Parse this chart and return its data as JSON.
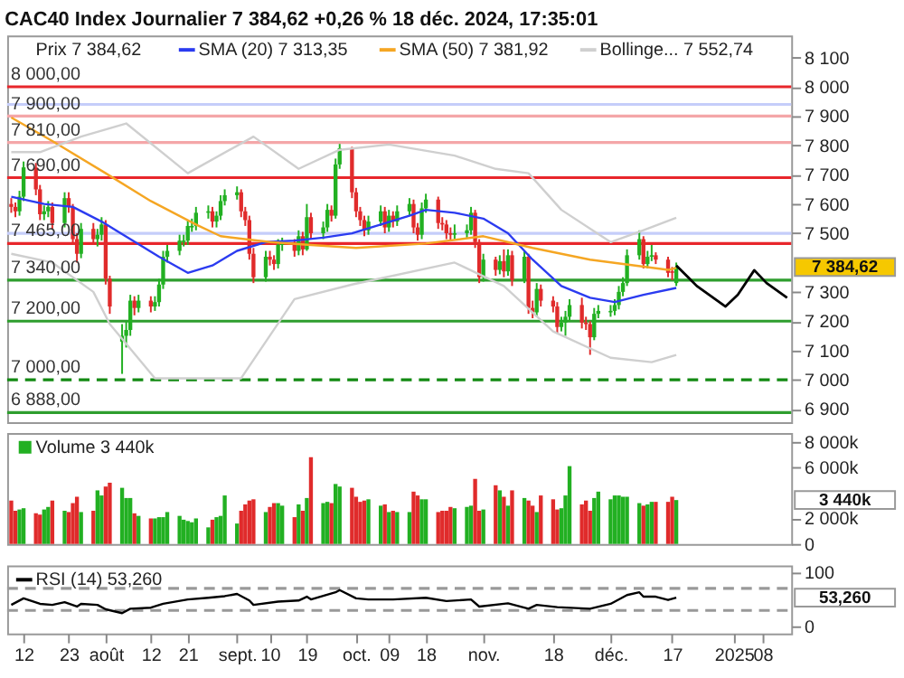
{
  "chart_data": [
    {
      "type": "candlestick",
      "title": "CAC40 Index Journalier 7 384,62 +0,26 % 18 déc. 2024, 17:35:01",
      "legend": "top",
      "tick_labels": "y",
      "xlim": [
        "2024-07-08",
        "2025-01-15"
      ],
      "ylim": [
        6855,
        8175
      ],
      "yticks": [
        {
          "value": 8100,
          "label": "8 100"
        },
        {
          "value": 8000,
          "label": "8 000"
        },
        {
          "value": 7900,
          "label": "7 900"
        },
        {
          "value": 7800,
          "label": "7 800"
        },
        {
          "value": 7700,
          "label": "7 700"
        },
        {
          "value": 7600,
          "label": "7 600"
        },
        {
          "value": 7500,
          "label": "7 500"
        },
        {
          "value": 7300,
          "label": "7 300"
        },
        {
          "value": 7200,
          "label": "7 200"
        },
        {
          "value": 7100,
          "label": "7 100"
        },
        {
          "value": 7000,
          "label": "7 000"
        },
        {
          "value": 6900,
          "label": "6 900"
        }
      ],
      "x": [
        "2024-07-09",
        "2024-07-10",
        "2024-07-11",
        "2024-07-12",
        "2024-07-15",
        "2024-07-16",
        "2024-07-17",
        "2024-07-18",
        "2024-07-19",
        "2024-07-22",
        "2024-07-23",
        "2024-07-24",
        "2024-07-25",
        "2024-07-26",
        "2024-07-29",
        "2024-07-30",
        "2024-07-31",
        "2024-08-01",
        "2024-08-02",
        "2024-08-05",
        "2024-08-06",
        "2024-08-07",
        "2024-08-08",
        "2024-08-09",
        "2024-08-12",
        "2024-08-13",
        "2024-08-14",
        "2024-08-15",
        "2024-08-16",
        "2024-08-19",
        "2024-08-20",
        "2024-08-21",
        "2024-08-22",
        "2024-08-23",
        "2024-08-26",
        "2024-08-27",
        "2024-08-28",
        "2024-08-29",
        "2024-08-30",
        "2024-09-02",
        "2024-09-03",
        "2024-09-04",
        "2024-09-05",
        "2024-09-06",
        "2024-09-09",
        "2024-09-10",
        "2024-09-11",
        "2024-09-12",
        "2024-09-13",
        "2024-09-16",
        "2024-09-17",
        "2024-09-18",
        "2024-09-19",
        "2024-09-20",
        "2024-09-23",
        "2024-09-24",
        "2024-09-25",
        "2024-09-26",
        "2024-09-27",
        "2024-09-30",
        "2024-10-01",
        "2024-10-02",
        "2024-10-03",
        "2024-10-04",
        "2024-10-07",
        "2024-10-08",
        "2024-10-09",
        "2024-10-10",
        "2024-10-11",
        "2024-10-14",
        "2024-10-15",
        "2024-10-16",
        "2024-10-17",
        "2024-10-18",
        "2024-10-21",
        "2024-10-22",
        "2024-10-23",
        "2024-10-24",
        "2024-10-25",
        "2024-10-28",
        "2024-10-29",
        "2024-10-30",
        "2024-10-31",
        "2024-11-01",
        "2024-11-04",
        "2024-11-05",
        "2024-11-06",
        "2024-11-07",
        "2024-11-08",
        "2024-11-11",
        "2024-11-12",
        "2024-11-13",
        "2024-11-14",
        "2024-11-15",
        "2024-11-18",
        "2024-11-19",
        "2024-11-20",
        "2024-11-21",
        "2024-11-22",
        "2024-11-25",
        "2024-11-26",
        "2024-11-27",
        "2024-11-28",
        "2024-11-29",
        "2024-12-02",
        "2024-12-03",
        "2024-12-04",
        "2024-12-05",
        "2024-12-06",
        "2024-12-09",
        "2024-12-10",
        "2024-12-11",
        "2024-12-12",
        "2024-12-13",
        "2024-12-16",
        "2024-12-17",
        "2024-12-18"
      ],
      "ohlc": [
        [
          7600,
          7620,
          7570,
          7590
        ],
        [
          7590,
          7605,
          7555,
          7575
        ],
        [
          7575,
          7645,
          7560,
          7625
        ],
        [
          7625,
          7745,
          7610,
          7725
        ],
        [
          7725,
          7740,
          7630,
          7650
        ],
        [
          7650,
          7665,
          7545,
          7565
        ],
        [
          7565,
          7595,
          7545,
          7575
        ],
        [
          7575,
          7610,
          7555,
          7590
        ],
        [
          7590,
          7605,
          7515,
          7535
        ],
        [
          7535,
          7640,
          7520,
          7620
        ],
        [
          7620,
          7640,
          7570,
          7590
        ],
        [
          7590,
          7600,
          7460,
          7480
        ],
        [
          7480,
          7500,
          7400,
          7430
        ],
        [
          7430,
          7535,
          7415,
          7515
        ],
        [
          7515,
          7535,
          7460,
          7480
        ],
        [
          7480,
          7515,
          7455,
          7495
        ],
        [
          7495,
          7555,
          7475,
          7530
        ],
        [
          7530,
          7545,
          7325,
          7345
        ],
        [
          7345,
          7355,
          7225,
          7250
        ],
        [
          7130,
          7190,
          7020,
          7150
        ],
        [
          7150,
          7200,
          7110,
          7170
        ],
        [
          7170,
          7290,
          7150,
          7270
        ],
        [
          7270,
          7285,
          7220,
          7245
        ],
        [
          7245,
          7290,
          7230,
          7270
        ],
        [
          7270,
          7285,
          7230,
          7250
        ],
        [
          7250,
          7285,
          7235,
          7265
        ],
        [
          7265,
          7345,
          7250,
          7325
        ],
        [
          7325,
          7440,
          7310,
          7420
        ],
        [
          7420,
          7460,
          7400,
          7440
        ],
        [
          7440,
          7495,
          7425,
          7475
        ],
        [
          7470,
          7495,
          7455,
          7475
        ],
        [
          7475,
          7545,
          7460,
          7525
        ],
        [
          7520,
          7550,
          7505,
          7525
        ],
        [
          7525,
          7590,
          7510,
          7570
        ],
        [
          7570,
          7595,
          7550,
          7575
        ],
        [
          7575,
          7590,
          7520,
          7540
        ],
        [
          7540,
          7575,
          7520,
          7560
        ],
        [
          7560,
          7630,
          7545,
          7610
        ],
        [
          7610,
          7650,
          7595,
          7630
        ],
        [
          7630,
          7660,
          7615,
          7640
        ],
        [
          7640,
          7650,
          7555,
          7575
        ],
        [
          7575,
          7590,
          7525,
          7545
        ],
        [
          7545,
          7560,
          7410,
          7430
        ],
        [
          7430,
          7450,
          7330,
          7350
        ],
        [
          7350,
          7440,
          7335,
          7420
        ],
        [
          7420,
          7440,
          7390,
          7410
        ],
        [
          7410,
          7425,
          7375,
          7395
        ],
        [
          7395,
          7480,
          7380,
          7460
        ],
        [
          7460,
          7485,
          7440,
          7465
        ],
        [
          7465,
          7480,
          7420,
          7440
        ],
        [
          7440,
          7510,
          7425,
          7490
        ],
        [
          7490,
          7505,
          7425,
          7445
        ],
        [
          7445,
          7600,
          7440,
          7555
        ],
        [
          7555,
          7570,
          7480,
          7500
        ],
        [
          7500,
          7540,
          7480,
          7520
        ],
        [
          7520,
          7600,
          7505,
          7580
        ],
        [
          7580,
          7595,
          7540,
          7560
        ],
        [
          7560,
          7755,
          7550,
          7735
        ],
        [
          7735,
          7805,
          7720,
          7790
        ],
        [
          7790,
          7795,
          7620,
          7640
        ],
        [
          7640,
          7655,
          7555,
          7575
        ],
        [
          7575,
          7590,
          7525,
          7545
        ],
        [
          7545,
          7560,
          7490,
          7510
        ],
        [
          7510,
          7560,
          7495,
          7540
        ],
        [
          7540,
          7595,
          7525,
          7575
        ],
        [
          7575,
          7590,
          7500,
          7520
        ],
        [
          7520,
          7580,
          7505,
          7560
        ],
        [
          7560,
          7575,
          7520,
          7540
        ],
        [
          7540,
          7595,
          7525,
          7575
        ],
        [
          7575,
          7620,
          7560,
          7600
        ],
        [
          7600,
          7615,
          7500,
          7520
        ],
        [
          7520,
          7535,
          7475,
          7495
        ],
        [
          7495,
          7605,
          7480,
          7585
        ],
        [
          7585,
          7635,
          7570,
          7615
        ],
        [
          7615,
          7625,
          7515,
          7535
        ],
        [
          7535,
          7555,
          7510,
          7530
        ],
        [
          7530,
          7545,
          7480,
          7500
        ],
        [
          7500,
          7520,
          7475,
          7495
        ],
        [
          7495,
          7530,
          7480,
          7500
        ],
        [
          7500,
          7530,
          7485,
          7510
        ],
        [
          7510,
          7590,
          7495,
          7570
        ],
        [
          7570,
          7580,
          7450,
          7470
        ],
        [
          7470,
          7480,
          7330,
          7350
        ],
        [
          7350,
          7430,
          7335,
          7410
        ],
        [
          7410,
          7420,
          7355,
          7375
        ],
        [
          7375,
          7425,
          7360,
          7405
        ],
        [
          7405,
          7445,
          7350,
          7370
        ],
        [
          7370,
          7445,
          7355,
          7425
        ],
        [
          7425,
          7440,
          7320,
          7340
        ],
        [
          7340,
          7440,
          7330,
          7420
        ],
        [
          7420,
          7430,
          7225,
          7245
        ],
        [
          7245,
          7270,
          7210,
          7230
        ],
        [
          7230,
          7330,
          7215,
          7310
        ],
        [
          7310,
          7325,
          7250,
          7270
        ],
        [
          7270,
          7285,
          7230,
          7250
        ],
        [
          7250,
          7265,
          7160,
          7180
        ],
        [
          7180,
          7215,
          7165,
          7195
        ],
        [
          7195,
          7235,
          7150,
          7215
        ],
        [
          7215,
          7275,
          7200,
          7255
        ],
        [
          7255,
          7280,
          7175,
          7195
        ],
        [
          7195,
          7215,
          7170,
          7190
        ],
        [
          7190,
          7200,
          7085,
          7145
        ],
        [
          7145,
          7245,
          7135,
          7225
        ],
        [
          7225,
          7255,
          7210,
          7235
        ],
        [
          7230,
          7255,
          7215,
          7235
        ],
        [
          7235,
          7275,
          7220,
          7255
        ],
        [
          7255,
          7320,
          7240,
          7300
        ],
        [
          7300,
          7350,
          7285,
          7330
        ],
        [
          7330,
          7445,
          7320,
          7425
        ],
        [
          7425,
          7510,
          7410,
          7480
        ],
        [
          7480,
          7490,
          7380,
          7395
        ],
        [
          7395,
          7440,
          7380,
          7420
        ],
        [
          7420,
          7460,
          7405,
          7425
        ],
        [
          7425,
          7435,
          7395,
          7410
        ],
        [
          7410,
          7420,
          7350,
          7365
        ],
        [
          7370,
          7385,
          7340,
          7365
        ],
        [
          7330,
          7400,
          7320,
          7384.62
        ]
      ],
      "colors": [
        "#e02b2b",
        "#e02b2b",
        "#22b022",
        "#22b022",
        "#e02b2b",
        "#e02b2b",
        "#22b022",
        "#22b022",
        "#e02b2b",
        "#22b022",
        "#e02b2b",
        "#e02b2b",
        "#e02b2b",
        "#22b022",
        "#e02b2b",
        "#22b022",
        "#22b022",
        "#e02b2b",
        "#e02b2b",
        "#22b022",
        "#22b022",
        "#22b022",
        "#e02b2b",
        "#22b022",
        "#e02b2b",
        "#22b022",
        "#22b022",
        "#22b022",
        "#22b022",
        "#22b022",
        "#22b022",
        "#22b022",
        "#22b022",
        "#22b022",
        "#22b022",
        "#e02b2b",
        "#22b022",
        "#22b022",
        "#22b022",
        "#22b022",
        "#e02b2b",
        "#e02b2b",
        "#e02b2b",
        "#e02b2b",
        "#22b022",
        "#e02b2b",
        "#e02b2b",
        "#22b022",
        "#22b022",
        "#e02b2b",
        "#22b022",
        "#e02b2b",
        "#22b022",
        "#e02b2b",
        "#22b022",
        "#22b022",
        "#e02b2b",
        "#22b022",
        "#22b022",
        "#e02b2b",
        "#e02b2b",
        "#e02b2b",
        "#e02b2b",
        "#22b022",
        "#22b022",
        "#e02b2b",
        "#22b022",
        "#e02b2b",
        "#22b022",
        "#22b022",
        "#e02b2b",
        "#e02b2b",
        "#22b022",
        "#22b022",
        "#e02b2b",
        "#e02b2b",
        "#e02b2b",
        "#e02b2b",
        "#22b022",
        "#22b022",
        "#22b022",
        "#e02b2b",
        "#e02b2b",
        "#22b022",
        "#e02b2b",
        "#22b022",
        "#e02b2b",
        "#22b022",
        "#e02b2b",
        "#22b022",
        "#e02b2b",
        "#e02b2b",
        "#22b022",
        "#e02b2b",
        "#e02b2b",
        "#e02b2b",
        "#22b022",
        "#22b022",
        "#22b022",
        "#e02b2b",
        "#e02b2b",
        "#e02b2b",
        "#22b022",
        "#22b022",
        "#22b022",
        "#22b022",
        "#22b022",
        "#22b022",
        "#22b022",
        "#22b022",
        "#e02b2b",
        "#22b022",
        "#22b022",
        "#e02b2b",
        "#e02b2b",
        "#e02b2b",
        "#22b022"
      ],
      "series": [
        {
          "type": "line",
          "name": "SMA (20) 7 313,35",
          "color": "#2b3bf0",
          "x": [
            "2024-07-09",
            "2024-07-17",
            "2024-07-24",
            "2024-07-31",
            "2024-08-07",
            "2024-08-14",
            "2024-08-21",
            "2024-08-27",
            "2024-09-02",
            "2024-09-09",
            "2024-09-16",
            "2024-09-23",
            "2024-09-30",
            "2024-10-07",
            "2024-10-14",
            "2024-10-18",
            "2024-10-25",
            "2024-11-01",
            "2024-11-07",
            "2024-11-13",
            "2024-11-20",
            "2024-11-27",
            "2024-12-03",
            "2024-12-10",
            "2024-12-18"
          ],
          "values": [
            7625,
            7600,
            7590,
            7540,
            7480,
            7420,
            7365,
            7390,
            7440,
            7470,
            7475,
            7485,
            7500,
            7530,
            7560,
            7580,
            7570,
            7550,
            7500,
            7410,
            7320,
            7280,
            7265,
            7290,
            7313.35
          ]
        },
        {
          "type": "line",
          "name": "SMA (50) 7 381,92",
          "color": "#f5a623",
          "x": [
            "2024-07-09",
            "2024-07-19",
            "2024-08-01",
            "2024-08-12",
            "2024-08-23",
            "2024-08-29",
            "2024-09-10",
            "2024-09-20",
            "2024-10-01",
            "2024-10-18",
            "2024-11-01",
            "2024-11-13",
            "2024-11-27",
            "2024-12-16",
            "2024-12-18"
          ],
          "values": [
            7895,
            7815,
            7705,
            7610,
            7530,
            7490,
            7470,
            7460,
            7450,
            7465,
            7490,
            7450,
            7410,
            7375,
            7381.92
          ]
        },
        {
          "type": "line",
          "name": "Bollinge... 7 552,74",
          "color": "#cfcfcf",
          "x": [
            "2024-07-09",
            "2024-07-16",
            "2024-07-26",
            "2024-08-06",
            "2024-08-21",
            "2024-09-06",
            "2024-09-17",
            "2024-09-27",
            "2024-10-09",
            "2024-10-25",
            "2024-11-04",
            "2024-11-12",
            "2024-11-20",
            "2024-12-02",
            "2024-12-09",
            "2024-12-18"
          ],
          "values": [
            7777,
            7777,
            7830,
            7875,
            7705,
            7830,
            7720,
            7785,
            7803,
            7765,
            7720,
            7705,
            7580,
            7470,
            7505,
            7552.74
          ]
        },
        {
          "type": "line",
          "color": "#cfcfcf",
          "x": [
            "2024-07-09",
            "2024-07-19",
            "2024-07-29",
            "2024-08-02",
            "2024-08-13",
            "2024-09-03",
            "2024-09-16",
            "2024-09-30",
            "2024-10-25",
            "2024-11-06",
            "2024-11-18",
            "2024-12-02",
            "2024-12-12",
            "2024-12-18"
          ],
          "values": [
            7430,
            7400,
            7300,
            7190,
            7005,
            7005,
            7275,
            7325,
            7400,
            7320,
            7165,
            7075,
            7060,
            7085
          ]
        },
        {
          "type": "line",
          "color": "#000000",
          "x": [
            "2024-12-18",
            "2024-12-23",
            "2024-12-30",
            "2025-01-02",
            "2025-01-06",
            "2025-01-09",
            "2025-01-14"
          ],
          "values": [
            7390,
            7320,
            7250,
            7290,
            7374,
            7330,
            7280
          ]
        }
      ],
      "ref_lines": [
        {
          "axis": "y",
          "value": 8000,
          "label": "8 000,00",
          "color": "#e8262b"
        },
        {
          "axis": "y",
          "value": 7940,
          "color": "#c5cdfa"
        },
        {
          "axis": "y",
          "value": 7900,
          "label": "7 900,00",
          "color": "#f4a6a8"
        },
        {
          "axis": "y",
          "value": 7810,
          "label": "7 810,00",
          "color": "#f4a6a8"
        },
        {
          "axis": "y",
          "value": 7690,
          "label": "7 690,00",
          "color": "#e8262b"
        },
        {
          "axis": "y",
          "value": 7500,
          "color": "#c5cdfa"
        },
        {
          "axis": "y",
          "value": 7465,
          "label": "7 465,00",
          "color": "#e8262b"
        },
        {
          "axis": "y",
          "value": 7340,
          "label": "7 340,00",
          "color": "#2e9e2e"
        },
        {
          "axis": "y",
          "value": 7200,
          "label": "7 200,00",
          "color": "#2e9e2e"
        },
        {
          "axis": "y",
          "value": 7000,
          "label": "7 000,00",
          "color": "#138a13",
          "line_style": "dashed"
        },
        {
          "axis": "y",
          "value": 6888,
          "label": "6 888,00",
          "color": "#2e9e2e"
        }
      ],
      "annotations": [
        "Prix 7 384,62",
        "7 384,62"
      ]
    },
    {
      "type": "bar",
      "legend": "top left",
      "tick_labels": "y",
      "xlim": [
        "2024-07-08",
        "2025-01-15"
      ],
      "ylim": [
        0,
        8700
      ],
      "yticks": [
        {
          "value": 0,
          "label": "0"
        },
        {
          "value": 2000,
          "label": "2 000k"
        },
        {
          "value": 6000,
          "label": "6 000k"
        },
        {
          "value": 8000,
          "label": "8 000k"
        }
      ],
      "x": [
        "2024-07-09",
        "2024-07-10",
        "2024-07-11",
        "2024-07-12",
        "2024-07-15",
        "2024-07-16",
        "2024-07-17",
        "2024-07-18",
        "2024-07-19",
        "2024-07-22",
        "2024-07-23",
        "2024-07-24",
        "2024-07-25",
        "2024-07-26",
        "2024-07-29",
        "2024-07-30",
        "2024-07-31",
        "2024-08-01",
        "2024-08-02",
        "2024-08-05",
        "2024-08-06",
        "2024-08-07",
        "2024-08-08",
        "2024-08-09",
        "2024-08-12",
        "2024-08-13",
        "2024-08-14",
        "2024-08-15",
        "2024-08-16",
        "2024-08-19",
        "2024-08-20",
        "2024-08-21",
        "2024-08-22",
        "2024-08-23",
        "2024-08-26",
        "2024-08-27",
        "2024-08-28",
        "2024-08-29",
        "2024-08-30",
        "2024-09-02",
        "2024-09-03",
        "2024-09-04",
        "2024-09-05",
        "2024-09-06",
        "2024-09-09",
        "2024-09-10",
        "2024-09-11",
        "2024-09-12",
        "2024-09-13",
        "2024-09-16",
        "2024-09-17",
        "2024-09-18",
        "2024-09-19",
        "2024-09-20",
        "2024-09-23",
        "2024-09-24",
        "2024-09-25",
        "2024-09-26",
        "2024-09-27",
        "2024-09-30",
        "2024-10-01",
        "2024-10-02",
        "2024-10-03",
        "2024-10-04",
        "2024-10-07",
        "2024-10-08",
        "2024-10-09",
        "2024-10-10",
        "2024-10-11",
        "2024-10-14",
        "2024-10-15",
        "2024-10-16",
        "2024-10-17",
        "2024-10-18",
        "2024-10-21",
        "2024-10-22",
        "2024-10-23",
        "2024-10-24",
        "2024-10-25",
        "2024-10-28",
        "2024-10-29",
        "2024-10-30",
        "2024-10-31",
        "2024-11-01",
        "2024-11-04",
        "2024-11-05",
        "2024-11-06",
        "2024-11-07",
        "2024-11-08",
        "2024-11-11",
        "2024-11-12",
        "2024-11-13",
        "2024-11-14",
        "2024-11-15",
        "2024-11-18",
        "2024-11-19",
        "2024-11-20",
        "2024-11-21",
        "2024-11-22",
        "2024-11-25",
        "2024-11-26",
        "2024-11-27",
        "2024-11-28",
        "2024-11-29",
        "2024-12-02",
        "2024-12-03",
        "2024-12-04",
        "2024-12-05",
        "2024-12-06",
        "2024-12-09",
        "2024-12-10",
        "2024-12-11",
        "2024-12-12",
        "2024-12-13",
        "2024-12-16",
        "2024-12-17",
        "2024-12-18"
      ],
      "series": [
        {
          "name": "Volume 3 440k",
          "color": "#22b022",
          "values": [
            3400,
            2600,
            2700,
            2800,
            2400,
            2300,
            2700,
            2900,
            3400,
            2600,
            2500,
            3200,
            3700,
            2500,
            2600,
            4200,
            3800,
            4500,
            4800,
            4400,
            3600,
            3600,
            2400,
            2200,
            2000,
            2000,
            2100,
            2100,
            2500,
            2200,
            1900,
            1800,
            1700,
            2000,
            1300,
            1900,
            2100,
            2200,
            3800,
            1600,
            2600,
            3100,
            3400,
            3500,
            2500,
            2900,
            3200,
            3200,
            3000,
            2100,
            3100,
            2600,
            3600,
            6800,
            3200,
            3300,
            3200,
            4700,
            4500,
            4400,
            3700,
            3300,
            3400,
            3500,
            3000,
            3100,
            2500,
            2600,
            2500,
            2500,
            4100,
            3800,
            3500,
            3500,
            2500,
            2600,
            2600,
            2900,
            2800,
            2900,
            3000,
            5100,
            2600,
            2700,
            4600,
            4200,
            3700,
            3000,
            4200,
            3600,
            3400,
            3000,
            2500,
            3800,
            3500,
            2700,
            2800,
            3800,
            6100,
            3100,
            3400,
            2600,
            3600,
            4100,
            3500,
            3800,
            3800,
            3700,
            3700,
            3200,
            3000,
            3100,
            3300,
            3300,
            3300,
            3700,
            3440
          ],
          "colors": [
            "#e02b2b",
            "#e02b2b",
            "#22b022",
            "#22b022",
            "#e02b2b",
            "#e02b2b",
            "#22b022",
            "#22b022",
            "#e02b2b",
            "#22b022",
            "#e02b2b",
            "#e02b2b",
            "#e02b2b",
            "#22b022",
            "#e02b2b",
            "#22b022",
            "#22b022",
            "#e02b2b",
            "#e02b2b",
            "#22b022",
            "#22b022",
            "#22b022",
            "#e02b2b",
            "#22b022",
            "#e02b2b",
            "#22b022",
            "#22b022",
            "#22b022",
            "#22b022",
            "#22b022",
            "#22b022",
            "#22b022",
            "#22b022",
            "#22b022",
            "#22b022",
            "#e02b2b",
            "#22b022",
            "#22b022",
            "#22b022",
            "#22b022",
            "#e02b2b",
            "#e02b2b",
            "#e02b2b",
            "#e02b2b",
            "#22b022",
            "#e02b2b",
            "#e02b2b",
            "#22b022",
            "#22b022",
            "#e02b2b",
            "#22b022",
            "#e02b2b",
            "#22b022",
            "#e02b2b",
            "#22b022",
            "#22b022",
            "#e02b2b",
            "#22b022",
            "#22b022",
            "#e02b2b",
            "#e02b2b",
            "#e02b2b",
            "#e02b2b",
            "#22b022",
            "#22b022",
            "#e02b2b",
            "#22b022",
            "#e02b2b",
            "#22b022",
            "#22b022",
            "#e02b2b",
            "#e02b2b",
            "#22b022",
            "#22b022",
            "#e02b2b",
            "#e02b2b",
            "#e02b2b",
            "#e02b2b",
            "#22b022",
            "#22b022",
            "#22b022",
            "#e02b2b",
            "#e02b2b",
            "#22b022",
            "#e02b2b",
            "#22b022",
            "#e02b2b",
            "#22b022",
            "#e02b2b",
            "#22b022",
            "#e02b2b",
            "#e02b2b",
            "#22b022",
            "#e02b2b",
            "#e02b2b",
            "#e02b2b",
            "#22b022",
            "#22b022",
            "#22b022",
            "#e02b2b",
            "#e02b2b",
            "#e02b2b",
            "#22b022",
            "#22b022",
            "#22b022",
            "#22b022",
            "#22b022",
            "#22b022",
            "#22b022",
            "#22b022",
            "#e02b2b",
            "#22b022",
            "#22b022",
            "#e02b2b",
            "#e02b2b",
            "#e02b2b",
            "#22b022"
          ]
        }
      ],
      "annotations": [
        "3 440k"
      ]
    },
    {
      "type": "line",
      "legend": "top left",
      "xlim": [
        "2024-07-08",
        "2025-01-15"
      ],
      "xticks": [
        {
          "value": "2024-07-12",
          "label": "12"
        },
        {
          "value": "2024-07-23",
          "label": "23"
        },
        {
          "value": "2024-08-01",
          "label": "août"
        },
        {
          "value": "2024-08-12",
          "label": "12"
        },
        {
          "value": "2024-08-21",
          "label": "21"
        },
        {
          "value": "2024-09-02",
          "label": "sept."
        },
        {
          "value": "2024-09-10",
          "label": "10"
        },
        {
          "value": "2024-09-19",
          "label": "19"
        },
        {
          "value": "2024-10-01",
          "label": "oct."
        },
        {
          "value": "2024-10-09",
          "label": "09"
        },
        {
          "value": "2024-10-18",
          "label": "18"
        },
        {
          "value": "2024-11-01",
          "label": "nov."
        },
        {
          "value": "2024-11-18",
          "label": "18"
        },
        {
          "value": "2024-12-02",
          "label": "déc."
        },
        {
          "value": "2024-12-17",
          "label": "17"
        },
        {
          "value": "2025-01-01",
          "label": "2025"
        },
        {
          "value": "2025-01-08",
          "label": "08"
        }
      ],
      "ylim": [
        -12,
        112
      ],
      "yticks": [
        0,
        100
      ],
      "series": [
        {
          "name": "RSI (14) 53,260",
          "color": "#000000",
          "x": [
            "2024-07-09",
            "2024-07-12",
            "2024-07-16",
            "2024-07-19",
            "2024-07-22",
            "2024-07-25",
            "2024-07-26",
            "2024-07-30",
            "2024-08-01",
            "2024-08-05",
            "2024-08-07",
            "2024-08-12",
            "2024-08-15",
            "2024-08-21",
            "2024-08-26",
            "2024-08-30",
            "2024-09-02",
            "2024-09-05",
            "2024-09-06",
            "2024-09-12",
            "2024-09-17",
            "2024-09-19",
            "2024-09-20",
            "2024-09-26",
            "2024-09-27",
            "2024-10-01",
            "2024-10-04",
            "2024-10-10",
            "2024-10-18",
            "2024-10-23",
            "2024-10-29",
            "2024-10-31",
            "2024-11-07",
            "2024-11-12",
            "2024-11-14",
            "2024-11-19",
            "2024-11-27",
            "2024-12-02",
            "2024-12-06",
            "2024-12-09",
            "2024-12-10",
            "2024-12-13",
            "2024-12-16",
            "2024-12-18"
          ],
          "values": [
            40,
            52,
            42,
            40,
            45,
            37,
            42,
            40,
            32,
            25,
            33,
            35,
            42,
            50,
            53,
            56,
            60,
            48,
            40,
            46,
            48,
            55,
            50,
            63,
            67,
            52,
            50,
            50,
            53,
            47,
            50,
            37,
            43,
            33,
            40,
            36,
            33,
            42,
            58,
            63,
            55,
            55,
            49,
            53.26
          ]
        }
      ],
      "ref_lines": [
        {
          "axis": "y",
          "value": 70,
          "color": "#999999",
          "line_style": "dashed"
        },
        {
          "axis": "y",
          "value": 30,
          "color": "#999999",
          "line_style": "dashed"
        }
      ],
      "annotations": [
        "53,260"
      ]
    }
  ]
}
